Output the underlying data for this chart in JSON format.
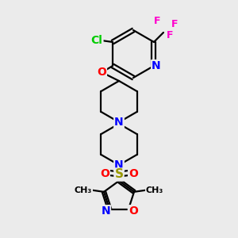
{
  "background_color": "#ebebeb",
  "bond_color": "#000000",
  "atom_colors": {
    "N": "#0000ff",
    "O": "#ff0000",
    "F": "#ff00cc",
    "Cl": "#00cc00",
    "S": "#999900"
  },
  "figsize": [
    3.0,
    3.0
  ],
  "dpi": 100
}
